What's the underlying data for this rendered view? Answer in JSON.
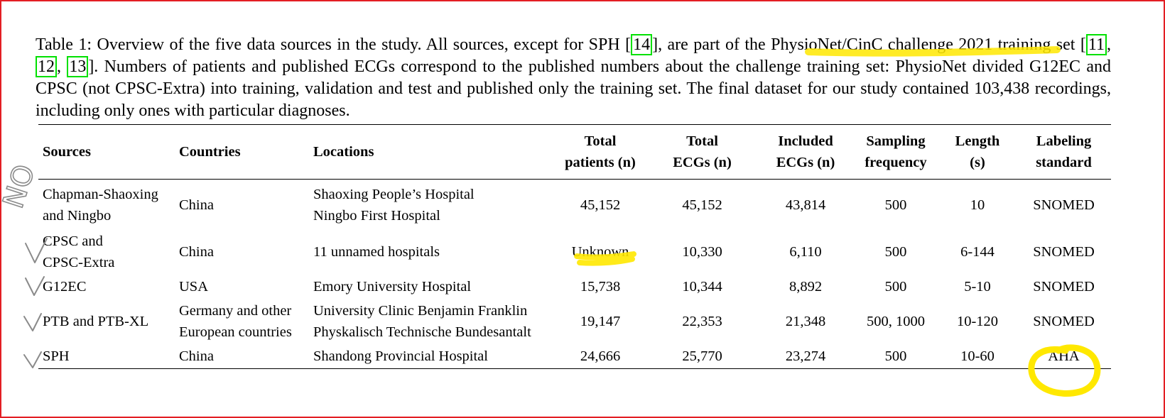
{
  "caption": {
    "part1": "Table 1: Overview of the five data sources in the study. All sources, except for SPH [",
    "cite1": "14",
    "part2": "], are part of the PhysioNet/CinC challenge 2021 training set [",
    "cite2": "11",
    "sep1": ", ",
    "cite3": "12",
    "sep2": ", ",
    "cite4": "13",
    "part3": "]. Numbers of patients and published ECGs correspond to the published numbers about the challenge training set: PhysioNet divided G12EC and CPSC (not CPSC-Extra) into training, validation and test and published only the training set. The final dataset for our study contained 103,438 recordings, including only ones with particular diagnoses."
  },
  "table": {
    "headers": [
      {
        "l1": "Sources",
        "l2": ""
      },
      {
        "l1": "Countries",
        "l2": ""
      },
      {
        "l1": "Locations",
        "l2": ""
      },
      {
        "l1": "Total",
        "l2": "patients (n)"
      },
      {
        "l1": "Total",
        "l2": "ECGs (n)"
      },
      {
        "l1": "Included",
        "l2": "ECGs (n)"
      },
      {
        "l1": "Sampling",
        "l2": "frequency"
      },
      {
        "l1": "Length",
        "l2": "(s)"
      },
      {
        "l1": "Labeling",
        "l2": "standard"
      }
    ],
    "rows": [
      {
        "source": [
          "Chapman-Shaoxing",
          "and Ningbo"
        ],
        "country": [
          "China"
        ],
        "locations": [
          "Shaoxing People’s Hospital",
          "Ningbo First Hospital"
        ],
        "patients": "45,152",
        "ecgs": "45,152",
        "included": "43,814",
        "freq": "500",
        "length": "10",
        "standard": "SNOMED"
      },
      {
        "source": [
          "CPSC and",
          "CPSC-Extra"
        ],
        "country": [
          "China"
        ],
        "locations": [
          "11 unnamed hospitals"
        ],
        "patients": "Unknown",
        "ecgs": "10,330",
        "included": "6,110",
        "freq": "500",
        "length": "6-144",
        "standard": "SNOMED"
      },
      {
        "source": [
          "G12EC"
        ],
        "country": [
          "USA"
        ],
        "locations": [
          "Emory University Hospital"
        ],
        "patients": "15,738",
        "ecgs": "10,344",
        "included": "8,892",
        "freq": "500",
        "length": "5-10",
        "standard": "SNOMED"
      },
      {
        "source": [
          "PTB and PTB-XL"
        ],
        "country": [
          "Germany and other",
          "European countries"
        ],
        "locations": [
          "University Clinic Benjamin Franklin",
          "Physkalisch Technische Bundesantalt"
        ],
        "patients": "19,147",
        "ecgs": "22,353",
        "included": "21,348",
        "freq": "500, 1000",
        "length": "10-120",
        "standard": "SNOMED"
      },
      {
        "source": [
          "SPH"
        ],
        "country": [
          "China"
        ],
        "locations": [
          "Shandong Provincial Hospital"
        ],
        "patients": "24,666",
        "ecgs": "25,770",
        "included": "23,274",
        "freq": "500",
        "length": "10-60",
        "standard": "AHA"
      }
    ]
  },
  "annotations": {
    "handwriting_no": "NO",
    "colors": {
      "highlighter": "#ffe800",
      "pen": "#8a8a8a",
      "frame": "#e31e24",
      "citation_box": "#00e000"
    }
  }
}
